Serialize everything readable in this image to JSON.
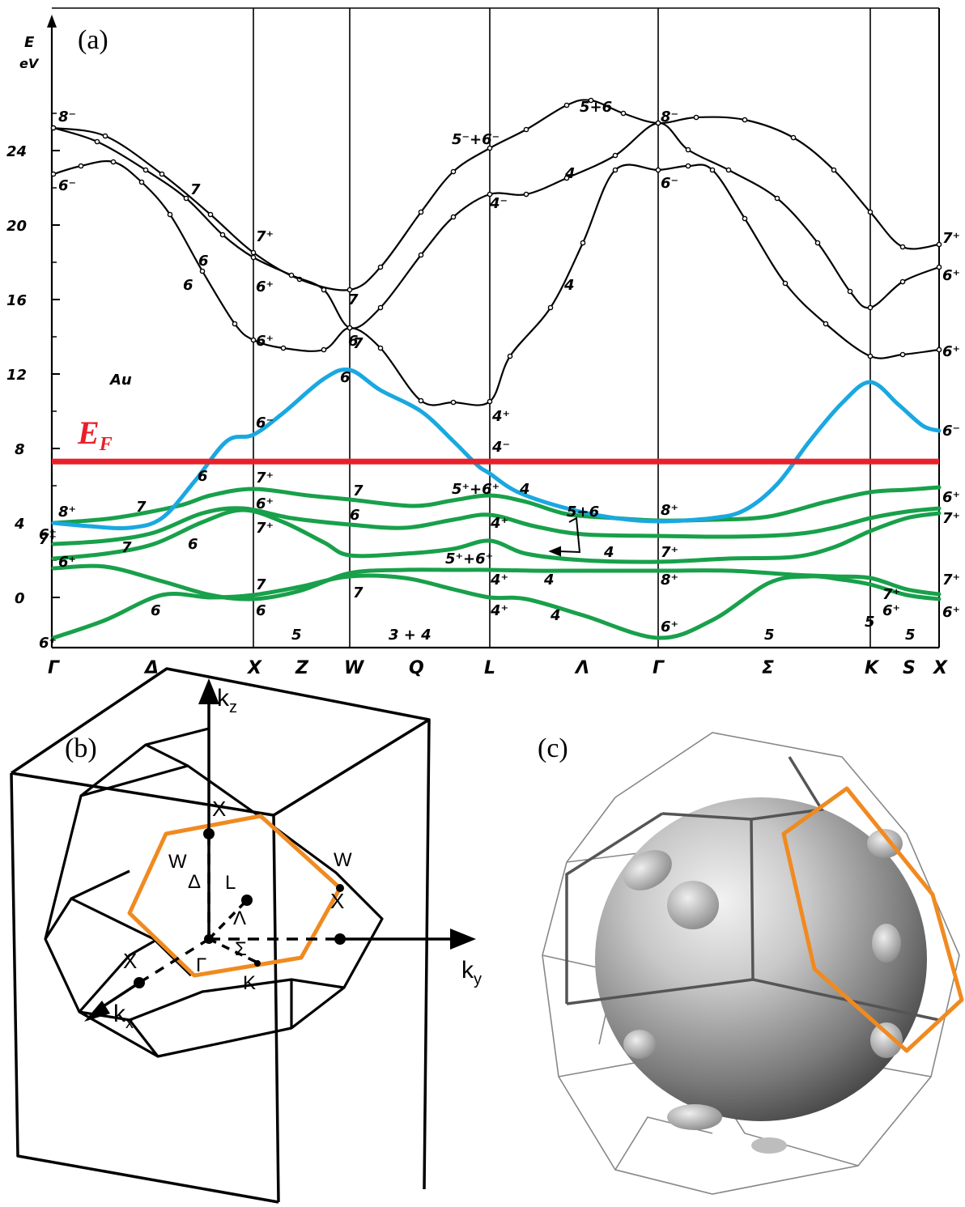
{
  "panels": {
    "a": {
      "label": "(a)",
      "y_axis_symbol": "E",
      "y_axis_unit": "eV",
      "material": "Au",
      "fermi_label": "E",
      "fermi_subscript": "F",
      "y_ticks": [
        "24",
        "20",
        "16",
        "12",
        "8",
        "4",
        "0"
      ],
      "k_points": [
        "Γ",
        "Δ",
        "X",
        "Z",
        "W",
        "Q",
        "L",
        "Λ",
        "Γ",
        "Σ",
        "K",
        "S",
        "X"
      ],
      "line_labels": [
        "5",
        "3 + 4",
        "5",
        "5",
        "5"
      ],
      "state_labels": [
        "8⁻",
        "6⁻",
        "7",
        "6",
        "6",
        "7⁺",
        "6⁺",
        "6⁺",
        "7",
        "6",
        "7",
        "6",
        "5⁻+6⁻",
        "4⁻",
        "4",
        "5+6",
        "4",
        "8⁻",
        "6⁻",
        "7⁺",
        "6⁺",
        "6⁺",
        "6⁻",
        "4⁺",
        "4⁻",
        "8⁺",
        "7⁺",
        "8⁺",
        "6⁺",
        "7",
        "6",
        "7",
        "7⁺",
        "6⁺",
        "7⁺",
        "7",
        "6",
        "5⁺+6⁺",
        "4⁺",
        "4",
        "5+6",
        "5⁺+6⁺",
        "4⁺",
        "4⁺",
        "4",
        "4",
        "7⁺",
        "8⁺",
        "6⁺",
        "6⁺",
        "7⁺",
        "7⁺",
        "6⁺",
        "6⁻",
        "6⁺",
        "4",
        "6",
        "7",
        "6",
        "7",
        "6",
        "6⁺",
        "7⁺",
        "6⁺"
      ]
    },
    "b": {
      "label": "(b)",
      "axes": [
        "k",
        "z",
        "k",
        "y",
        "k",
        "x"
      ],
      "points": [
        "X",
        "X",
        "X",
        "W",
        "W",
        "L",
        "Δ",
        "Λ",
        "Γ",
        "Σ",
        "K"
      ]
    },
    "c": {
      "label": "(c)"
    }
  },
  "chart_data": {
    "type": "line",
    "title": "",
    "xlabel": "",
    "ylabel": "E eV",
    "ylim": [
      -2,
      30
    ],
    "x_ticks": [
      "Γ",
      "X",
      "W",
      "L",
      "Γ",
      "K",
      "X"
    ],
    "series_style": {
      "fermi_level": {
        "value": 7.3,
        "color": "#e8202a"
      },
      "highlight_band_color": "#1aa8e0",
      "d_band_color": "#18a04a",
      "band_color": "#000000"
    }
  }
}
